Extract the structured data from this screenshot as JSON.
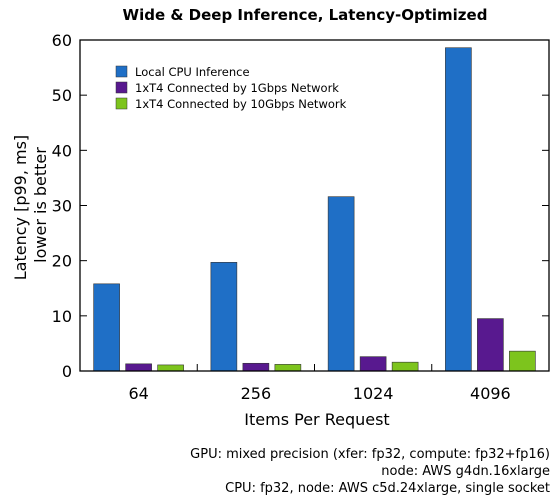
{
  "chart_data": {
    "type": "bar",
    "title": "Wide & Deep Inference, Latency-Optimized",
    "xlabel": "Items Per Request",
    "ylabel_lines": [
      "Latency [p99, ms]",
      "lower is better"
    ],
    "categories": [
      "64",
      "256",
      "1024",
      "4096"
    ],
    "ylim": [
      0,
      60
    ],
    "yticks": [
      0,
      10,
      20,
      30,
      40,
      50,
      60
    ],
    "grid": false,
    "legend_position": "top-left",
    "series": [
      {
        "name": "Local CPU Inference",
        "color": "#1f6fc6",
        "values": [
          15.8,
          19.7,
          31.6,
          58.6
        ]
      },
      {
        "name": "1xT4 Connected by 1Gbps Network",
        "color": "#58198f",
        "values": [
          1.3,
          1.4,
          2.6,
          9.5
        ]
      },
      {
        "name": "1xT4 Connected by 10Gbps Network",
        "color": "#7dc41d",
        "values": [
          1.1,
          1.2,
          1.6,
          3.6
        ]
      }
    ]
  },
  "footnotes": [
    "GPU: mixed precision (xfer: fp32, compute: fp32+fp16)",
    "node: AWS g4dn.16xlarge",
    "CPU: fp32, node: AWS c5d.24xlarge, single socket"
  ]
}
